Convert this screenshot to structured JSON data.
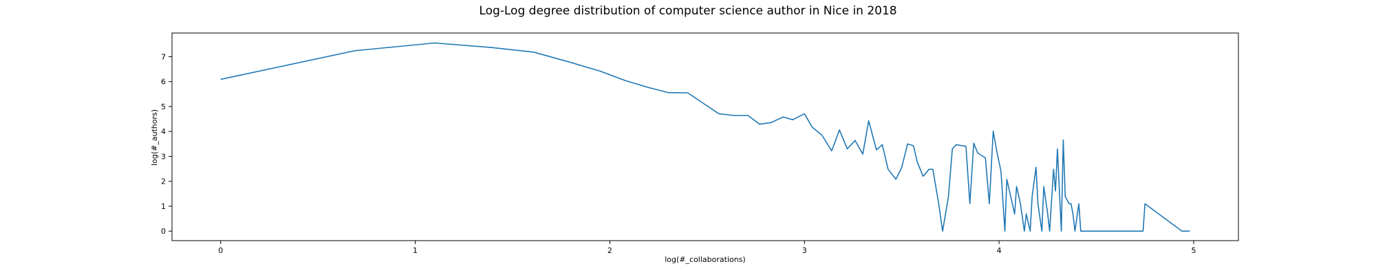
{
  "chart_data": {
    "type": "line",
    "title": "Log-Log degree distribution of computer science author in Nice in 2018",
    "xlabel": "log(#_collaborations)",
    "ylabel": "log(#_authors)",
    "xlim": [
      -0.25,
      5.23
    ],
    "ylim": [
      -0.38,
      7.95
    ],
    "xticks": [
      0,
      1,
      2,
      3,
      4,
      5
    ],
    "yticks": [
      0,
      1,
      2,
      3,
      4,
      5,
      6,
      7
    ],
    "grid": false,
    "color": "#1f77b4",
    "series": [
      {
        "x": [
          0.0,
          0.69,
          1.1,
          1.39,
          1.61,
          1.79,
          1.95,
          2.08,
          2.2,
          2.3,
          2.4,
          2.48,
          2.56,
          2.64,
          2.71,
          2.77,
          2.83,
          2.89,
          2.94,
          3.0,
          3.04,
          3.09,
          3.14,
          3.18,
          3.22,
          3.26,
          3.3,
          3.33,
          3.37,
          3.4,
          3.43,
          3.47,
          3.5,
          3.53,
          3.56,
          3.58,
          3.61,
          3.64,
          3.66,
          3.69,
          3.71,
          3.74,
          3.76,
          3.78,
          3.81,
          3.83,
          3.85,
          3.87,
          3.89,
          3.91,
          3.93,
          3.95,
          3.97,
          3.99,
          4.01,
          4.03,
          4.04,
          4.06,
          4.08,
          4.09,
          4.11,
          4.13,
          4.14,
          4.16,
          4.17,
          4.19,
          4.2,
          4.22,
          4.23,
          4.25,
          4.26,
          4.28,
          4.29,
          4.3,
          4.32,
          4.33,
          4.34,
          4.36,
          4.37,
          4.38,
          4.39,
          4.41,
          4.42,
          4.43,
          4.44,
          4.45,
          4.47,
          4.48,
          4.49,
          4.5,
          4.51,
          4.52,
          4.53,
          4.54,
          4.55,
          4.56,
          4.74,
          4.75,
          4.94,
          4.96,
          4.97,
          4.98
        ],
        "y": [
          6.09,
          7.24,
          7.55,
          7.37,
          7.18,
          6.79,
          6.42,
          6.04,
          5.76,
          5.56,
          5.55,
          5.13,
          4.71,
          4.64,
          4.64,
          4.29,
          4.36,
          4.58,
          4.47,
          4.71,
          4.17,
          3.85,
          3.22,
          4.06,
          3.3,
          3.64,
          3.09,
          4.43,
          3.26,
          3.47,
          2.48,
          2.08,
          2.56,
          3.5,
          3.43,
          2.77,
          2.2,
          2.48,
          2.48,
          1.1,
          0.0,
          1.39,
          3.3,
          3.47,
          3.43,
          3.4,
          1.1,
          3.53,
          3.14,
          3.04,
          2.94,
          1.1,
          4.01,
          3.14,
          2.4,
          0.0,
          2.08,
          1.39,
          0.69,
          1.79,
          1.1,
          0.0,
          0.69,
          0.0,
          1.39,
          2.56,
          1.1,
          0.0,
          1.79,
          0.69,
          0.0,
          2.48,
          1.61,
          3.3,
          0.0,
          3.66,
          1.39,
          1.1,
          1.1,
          0.69,
          0.0,
          1.1,
          0.0,
          0.0,
          0.0,
          0.0,
          0.0,
          0.0,
          0.0,
          0.0,
          0.0,
          0.0,
          0.0,
          0.0,
          0.0,
          0.0,
          0.0,
          1.1,
          0.0,
          0.0,
          0.0,
          0.0
        ]
      }
    ]
  }
}
